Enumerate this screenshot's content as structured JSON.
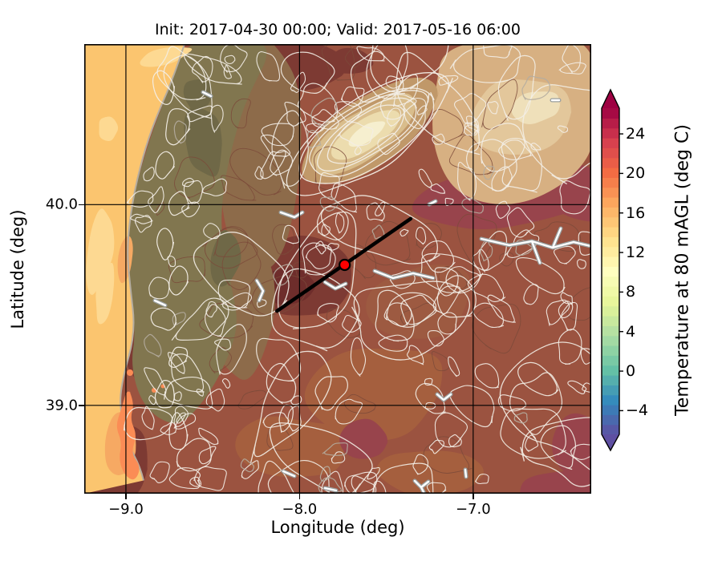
{
  "title": "Init: 2017-04-30 00:00; Valid: 2017-05-16 06:00",
  "axes": {
    "xlabel": "Longitude (deg)",
    "ylabel": "Latitude (deg)",
    "xticks": [
      {
        "value": -9.0,
        "label": "−9.0"
      },
      {
        "value": -8.0,
        "label": "−8.0"
      },
      {
        "value": -7.0,
        "label": "−7.0"
      }
    ],
    "yticks": [
      {
        "value": 40.0,
        "label": "40.0"
      },
      {
        "value": 39.0,
        "label": "39.0"
      }
    ],
    "extent": {
      "lon_min": -9.24,
      "lon_max": -6.32,
      "lat_min": 38.56,
      "lat_max": 40.8
    }
  },
  "colorbar": {
    "label": "Temperature at 80 mAGL (deg C)",
    "ticks": [
      {
        "value": 24,
        "label": "24"
      },
      {
        "value": 20,
        "label": "20"
      },
      {
        "value": 16,
        "label": "16"
      },
      {
        "value": 12,
        "label": "12"
      },
      {
        "value": 8,
        "label": "8"
      },
      {
        "value": 4,
        "label": "4"
      },
      {
        "value": 0,
        "label": "0"
      },
      {
        "value": -4,
        "label": "−4"
      }
    ],
    "vmin": -6.4,
    "vmax": 26.6,
    "band_step": 1,
    "extend": "both",
    "colormap": "Spectral_r",
    "anchors": [
      "#5e4fa2",
      "#3288bd",
      "#66c2a5",
      "#abdda4",
      "#e6f598",
      "#ffffbf",
      "#fee08b",
      "#fdae61",
      "#f46d43",
      "#d53e4f",
      "#9e0142"
    ]
  },
  "chart_data": {
    "type": "heatmap",
    "title": "Init: 2017-04-30 00:00; Valid: 2017-05-16 06:00",
    "xlabel": "Longitude (deg)",
    "ylabel": "Latitude (deg)",
    "field_label": "Temperature at 80 mAGL (deg C)",
    "extent_lon": [
      -9.24,
      -6.32
    ],
    "extent_lat": [
      38.56,
      40.8
    ],
    "grid_lon": [
      -9.0,
      -8.0,
      -7.0
    ],
    "grid_lat": [
      39.0,
      40.0
    ],
    "marker": {
      "lon": -7.74,
      "lat": 39.7,
      "color": "#ff0000",
      "edge": "#000000"
    },
    "cross_section": {
      "from": {
        "lon": -8.13,
        "lat": 39.47
      },
      "to": {
        "lon": -7.36,
        "lat": 39.93
      },
      "color": "#000000"
    },
    "approx_values": {
      "ocean_west_strip_degC": 16,
      "coastal_uplands_degC": 19,
      "interior_lowlands_degC": 24,
      "mountain_ridge_tops_degC": 11,
      "ne_plateau_degC": 14,
      "estuary_patch_degC": 20
    },
    "overlays": [
      "terrain contour lines (white/gray/brown)",
      "reservoir water bodies (white with gray edge)",
      "lat/lon graticule (black)"
    ]
  },
  "map": {
    "palette": {
      "base_land": "#9b5340",
      "ocean": "#fbc56f",
      "ocean_light": "#fdd992",
      "coast_orange": "#f6a963",
      "estuary": "#fb8c55",
      "olive": "#81764f",
      "olive_dark": "#6f6847",
      "khaki_brown": "#8d6b4a",
      "tan": "#d7b082",
      "tan_light": "#e3c79b",
      "cream": "#efe0ba",
      "ridge1": "#c09869",
      "ridge2": "#d9bd8c",
      "ridge3": "#ecdcae",
      "ridge4": "#f6efcf",
      "maroon": "#7d3a33",
      "maroon_dark": "#6e2d2b",
      "crimson": "#98444c",
      "warm_brown": "#a55f3e",
      "mid_brown": "#9d5a41",
      "contour_white": "#f3eee6",
      "contour_brown": "#7b4a3a",
      "contour_gray": "#b5ada0",
      "reservoir_edge": "#9aa0a0",
      "reservoir_fill": "#ffffff",
      "grid": "#000000",
      "border": "#000000"
    }
  }
}
